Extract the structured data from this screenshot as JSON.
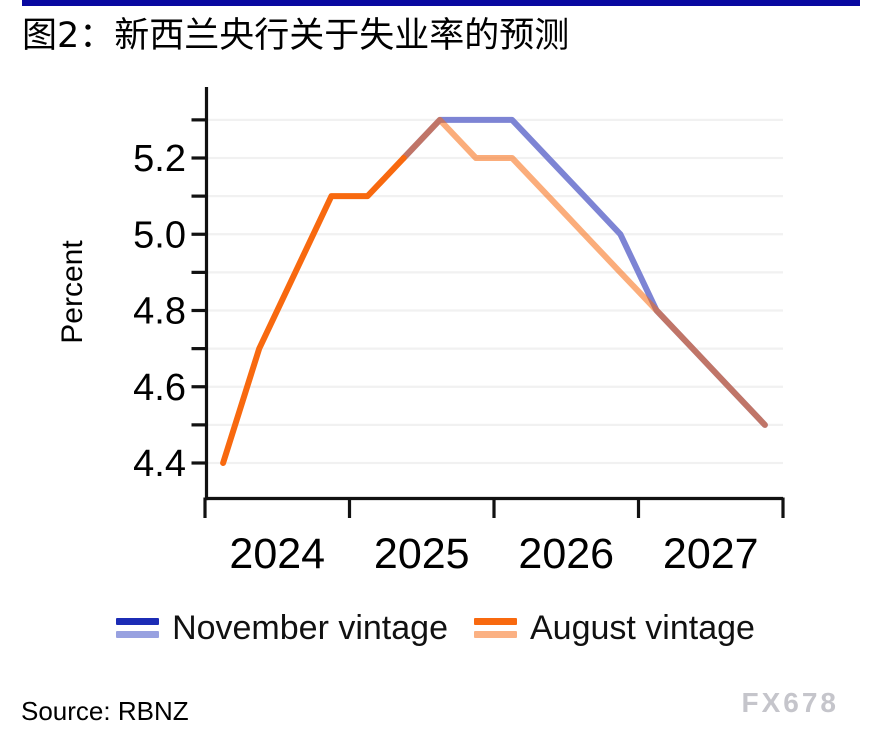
{
  "page": {
    "title": "图2：新西兰央行关于失业率的预测",
    "source": "Source: RBNZ",
    "watermark": "FX678"
  },
  "colors": {
    "top_rule": "#0808a0",
    "axis": "#111111",
    "gridline": "#f1f1f1",
    "november_line": "#7d84d4",
    "august_line": "#f8690f",
    "august_forecast_opacity": 0.55,
    "watermark": "#c5c5cb"
  },
  "legend": [
    {
      "label": "November vintage",
      "dark": "#1c2cb5",
      "light": "#98a1e0"
    },
    {
      "label": "August vintage",
      "dark": "#f8690f",
      "light": "#fbb183"
    }
  ],
  "chart_data": {
    "type": "line",
    "title": "图2：新西兰央行关于失业率的预测",
    "xlabel": "",
    "ylabel": "Percent",
    "x_unit": "quarterly, 2024Q1 to 2027Q4",
    "x_tick_labels": [
      "2024",
      "2025",
      "2026",
      "2027"
    ],
    "y_ticks_labeled": [
      4.4,
      4.6,
      4.8,
      5.0,
      5.2
    ],
    "y_minor_tick_step": 0.1,
    "ylim": [
      4.35,
      5.35
    ],
    "grid": "horizontal, every 0.1",
    "legend_position": "bottom",
    "series": [
      {
        "name": "November vintage",
        "start_quarter": "2025Q2",
        "start_index": 5,
        "values": [
          5.2,
          5.3,
          5.3,
          5.3,
          5.2,
          5.1,
          5.0,
          4.8,
          4.7,
          4.6,
          4.5
        ],
        "color": "#7d84d4",
        "opacity": 1
      },
      {
        "name": "August vintage",
        "start_quarter": "2024Q1",
        "start_index": 0,
        "values": [
          4.4,
          4.7,
          4.9,
          5.1,
          5.1,
          5.2,
          5.3,
          5.2,
          5.2,
          5.1,
          5.0,
          4.9,
          4.8,
          4.7,
          4.6,
          4.5
        ],
        "color": "#f8690f",
        "solid_until_index": 5,
        "forecast_opacity": 0.55,
        "note": "solid = actual data, translucent = forecast; overlap with November line renders brown"
      }
    ]
  }
}
